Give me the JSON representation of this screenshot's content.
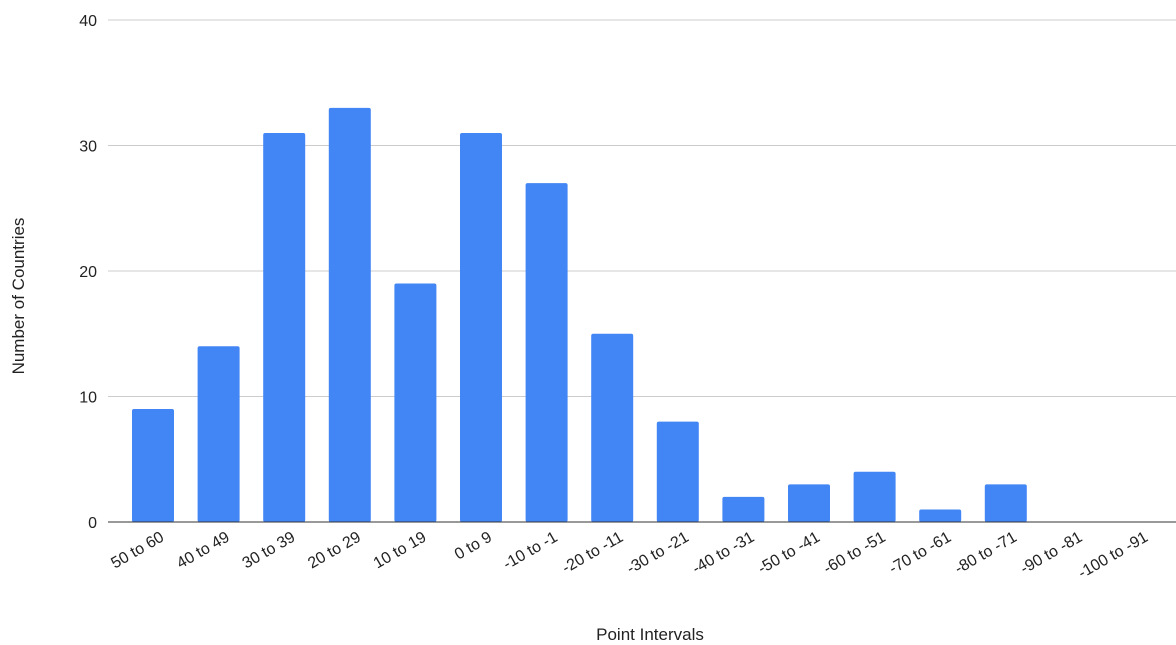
{
  "chart_data": {
    "type": "bar",
    "title": "",
    "xlabel": "Point Intervals",
    "ylabel": "Number of Countries",
    "ylim": [
      0,
      40
    ],
    "yticks": [
      0,
      10,
      20,
      30,
      40
    ],
    "grid": true,
    "legend": "none",
    "bar_color": "#4285f4",
    "categories": [
      "50 to 60",
      "40 to 49",
      "30 to 39",
      "20 to 29",
      "10 to 19",
      "0 to 9",
      "-10 to -1",
      "-20 to -11",
      "-30 to -21",
      "-40 to -31",
      "-50 to -41",
      "-60 to -51",
      "-70 to -61",
      "-80 to -71",
      "-90 to -81",
      "-100 to -91"
    ],
    "values": [
      9,
      14,
      31,
      33,
      19,
      31,
      27,
      15,
      8,
      2,
      3,
      4,
      1,
      3,
      0,
      0
    ]
  }
}
